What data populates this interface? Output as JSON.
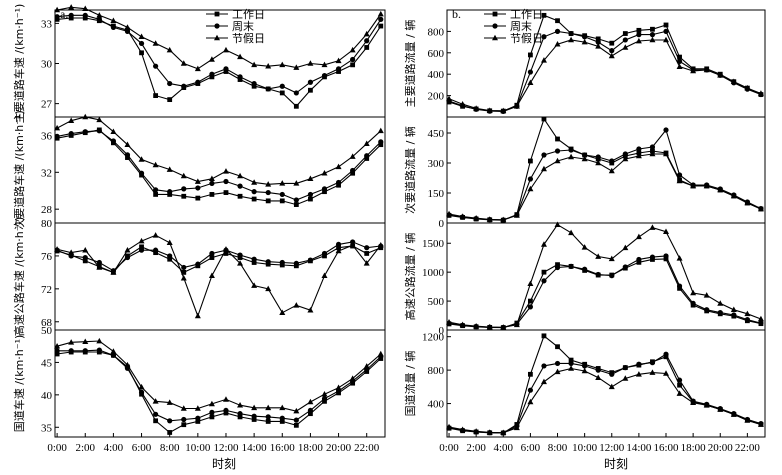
{
  "figure": {
    "panel_tags": [
      "a.",
      "b."
    ],
    "xlabel": "时刻",
    "legend": [
      "工作日",
      "周末",
      "节假日"
    ],
    "x_ticks": [
      "0:00",
      "2:00",
      "4:00",
      "6:00",
      "8:00",
      "10:00",
      "12:00",
      "14:00",
      "16:00",
      "18:00",
      "20:00",
      "22:00"
    ]
  },
  "chart_data": [
    {
      "type": "line",
      "column": "left",
      "row": 0,
      "ylabel": "主要道路车速 /(km·h⁻¹)",
      "ylim": [
        26,
        34
      ],
      "yticks": [
        27,
        30,
        33
      ],
      "x": [
        0,
        1,
        2,
        3,
        4,
        5,
        6,
        7,
        8,
        9,
        10,
        11,
        12,
        13,
        14,
        15,
        16,
        17,
        18,
        19,
        20,
        21,
        22,
        23
      ],
      "series": [
        {
          "name": "工作日",
          "values": [
            33.3,
            33.4,
            33.4,
            33.2,
            32.8,
            32.5,
            30.8,
            27.6,
            27.3,
            28.2,
            28.5,
            29.0,
            29.4,
            28.8,
            28.3,
            28.1,
            27.8,
            26.8,
            28.0,
            29.0,
            29.4,
            29.9,
            31.2,
            32.8
          ]
        },
        {
          "name": "周末",
          "values": [
            33.5,
            33.6,
            33.6,
            33.3,
            32.7,
            32.4,
            31.5,
            29.8,
            28.5,
            28.3,
            28.6,
            29.2,
            29.6,
            29.0,
            28.5,
            28.1,
            28.3,
            27.8,
            28.6,
            29.1,
            29.6,
            30.3,
            31.7,
            33.3
          ]
        },
        {
          "name": "节假日",
          "values": [
            34.0,
            34.2,
            34.1,
            33.6,
            33.2,
            32.7,
            32.0,
            31.5,
            31.0,
            30.0,
            29.6,
            30.3,
            31.0,
            30.5,
            29.9,
            29.8,
            29.9,
            29.7,
            30.0,
            29.9,
            30.2,
            31.0,
            32.2,
            33.7
          ]
        }
      ]
    },
    {
      "type": "line",
      "column": "left",
      "row": 1,
      "ylabel": "次要道路车速 /(km·h⁻¹)",
      "ylim": [
        26.5,
        38
      ],
      "yticks": [
        28,
        32,
        36
      ],
      "x": [
        0,
        1,
        2,
        3,
        4,
        5,
        6,
        7,
        8,
        9,
        10,
        11,
        12,
        13,
        14,
        15,
        16,
        17,
        18,
        19,
        20,
        21,
        22,
        23
      ],
      "series": [
        {
          "name": "工作日",
          "values": [
            35.7,
            36.0,
            36.3,
            36.6,
            35.2,
            33.6,
            31.7,
            29.6,
            29.6,
            29.4,
            29.2,
            29.6,
            29.8,
            29.4,
            29.1,
            28.9,
            28.9,
            28.5,
            29.1,
            29.9,
            30.6,
            31.9,
            33.5,
            35.0
          ]
        },
        {
          "name": "周末",
          "values": [
            35.9,
            36.2,
            36.4,
            36.5,
            35.4,
            33.9,
            31.9,
            30.1,
            29.9,
            30.2,
            30.3,
            30.8,
            31.0,
            30.5,
            29.9,
            29.8,
            29.6,
            29.0,
            29.6,
            30.2,
            30.9,
            32.2,
            33.8,
            35.3
          ]
        },
        {
          "name": "节假日",
          "values": [
            36.8,
            37.6,
            38.0,
            37.7,
            36.4,
            35.0,
            33.4,
            32.8,
            32.3,
            31.6,
            31.0,
            31.3,
            32.1,
            31.6,
            30.9,
            30.7,
            30.8,
            30.8,
            31.3,
            31.9,
            32.6,
            33.7,
            35.1,
            36.5
          ]
        }
      ]
    },
    {
      "type": "line",
      "column": "left",
      "row": 2,
      "ylabel": "高速公路车速 /(km·h⁻¹)",
      "ylim": [
        67,
        80
      ],
      "yticks": [
        68,
        72,
        76,
        80
      ],
      "x": [
        0,
        1,
        2,
        3,
        4,
        5,
        6,
        7,
        8,
        9,
        10,
        11,
        12,
        13,
        14,
        15,
        16,
        17,
        18,
        19,
        20,
        21,
        22,
        23
      ],
      "series": [
        {
          "name": "工作日",
          "values": [
            76.6,
            76.1,
            75.4,
            74.7,
            74.0,
            76.0,
            77.1,
            76.4,
            75.6,
            74.0,
            74.8,
            75.8,
            76.3,
            75.8,
            75.2,
            75.0,
            74.9,
            74.8,
            75.4,
            76.0,
            77.0,
            77.2,
            76.3,
            77.0
          ]
        },
        {
          "name": "周末",
          "values": [
            76.7,
            76.0,
            75.8,
            75.2,
            74.2,
            75.8,
            76.7,
            76.7,
            76.0,
            74.6,
            75.0,
            76.3,
            76.7,
            76.1,
            75.6,
            75.3,
            75.2,
            75.1,
            75.5,
            76.3,
            77.4,
            77.7,
            77.0,
            77.2
          ]
        },
        {
          "name": "节假日",
          "values": [
            76.8,
            76.4,
            76.7,
            74.6,
            74.0,
            76.7,
            77.8,
            78.5,
            77.6,
            73.3,
            68.7,
            73.6,
            76.8,
            75.1,
            72.4,
            72.0,
            69.1,
            70.0,
            69.4,
            73.6,
            76.6,
            77.3,
            75.1,
            77.3
          ]
        }
      ]
    },
    {
      "type": "line",
      "column": "left",
      "row": 3,
      "ylabel": "国道车速 /(km·h⁻¹)",
      "ylim": [
        33.5,
        50
      ],
      "yticks": [
        35,
        40,
        45,
        50
      ],
      "x": [
        0,
        1,
        2,
        3,
        4,
        5,
        6,
        7,
        8,
        9,
        10,
        11,
        12,
        13,
        14,
        15,
        16,
        17,
        18,
        19,
        20,
        21,
        22,
        23
      ],
      "series": [
        {
          "name": "工作日",
          "values": [
            46.3,
            46.6,
            46.6,
            46.6,
            46.1,
            44.3,
            40.1,
            36.0,
            34.2,
            35.4,
            35.9,
            36.6,
            37.2,
            36.6,
            36.2,
            35.9,
            35.9,
            35.3,
            37.1,
            39.0,
            40.3,
            41.8,
            43.6,
            45.6
          ]
        },
        {
          "name": "周末",
          "values": [
            46.8,
            46.8,
            46.8,
            46.9,
            46.1,
            44.1,
            40.4,
            37.0,
            36.0,
            36.2,
            36.4,
            37.3,
            37.6,
            37.1,
            36.7,
            36.6,
            36.4,
            36.1,
            37.6,
            39.4,
            40.6,
            42.1,
            43.9,
            45.9
          ]
        },
        {
          "name": "节假日",
          "values": [
            47.5,
            48.1,
            48.2,
            48.3,
            46.7,
            44.6,
            41.2,
            39.0,
            38.8,
            37.9,
            37.9,
            38.6,
            39.3,
            38.4,
            38.0,
            38.0,
            38.0,
            37.5,
            38.9,
            40.1,
            41.1,
            42.5,
            44.4,
            46.3
          ]
        }
      ]
    },
    {
      "type": "line",
      "column": "right",
      "row": 0,
      "ylabel": "主要道路流量 / 辆",
      "ylim": [
        0,
        1000
      ],
      "yticks": [
        200,
        400,
        600,
        800
      ],
      "x": [
        0,
        1,
        2,
        3,
        4,
        5,
        6,
        7,
        8,
        9,
        10,
        11,
        12,
        13,
        14,
        15,
        16,
        17,
        18,
        19,
        20,
        21,
        22,
        23
      ],
      "series": [
        {
          "name": "工作日",
          "values": [
            140,
            100,
            75,
            58,
            55,
            110,
            580,
            950,
            900,
            780,
            760,
            730,
            690,
            780,
            810,
            820,
            860,
            560,
            450,
            450,
            400,
            330,
            270,
            210
          ]
        },
        {
          "name": "周末",
          "values": [
            150,
            105,
            72,
            55,
            52,
            100,
            420,
            750,
            800,
            780,
            750,
            700,
            620,
            720,
            770,
            770,
            800,
            520,
            440,
            440,
            390,
            320,
            260,
            210
          ]
        },
        {
          "name": "节假日",
          "values": [
            170,
            120,
            80,
            60,
            58,
            100,
            320,
            530,
            680,
            720,
            700,
            660,
            570,
            650,
            710,
            720,
            720,
            470,
            430,
            440,
            390,
            330,
            270,
            220
          ]
        }
      ]
    },
    {
      "type": "line",
      "column": "right",
      "row": 1,
      "ylabel": "次要道路流量 / 辆",
      "ylim": [
        0,
        530
      ],
      "yticks": [
        0,
        150,
        300,
        450
      ],
      "x": [
        0,
        1,
        2,
        3,
        4,
        5,
        6,
        7,
        8,
        9,
        10,
        11,
        12,
        13,
        14,
        15,
        16,
        17,
        18,
        19,
        20,
        21,
        22,
        23
      ],
      "series": [
        {
          "name": "工作日",
          "values": [
            38,
            28,
            20,
            16,
            14,
            42,
            310,
            520,
            420,
            370,
            340,
            320,
            300,
            335,
            350,
            360,
            350,
            215,
            185,
            185,
            165,
            135,
            100,
            70
          ]
        },
        {
          "name": "周末",
          "values": [
            40,
            30,
            22,
            17,
            15,
            40,
            220,
            340,
            360,
            365,
            340,
            330,
            310,
            345,
            370,
            380,
            465,
            240,
            190,
            190,
            170,
            140,
            105,
            72
          ]
        },
        {
          "name": "节假日",
          "values": [
            45,
            32,
            24,
            18,
            16,
            38,
            170,
            270,
            310,
            330,
            320,
            300,
            260,
            320,
            335,
            345,
            345,
            210,
            185,
            185,
            165,
            135,
            100,
            70
          ]
        }
      ]
    },
    {
      "type": "line",
      "column": "right",
      "row": 2,
      "ylabel": "高速公路流量 / 辆",
      "ylim": [
        0,
        1850
      ],
      "yticks": [
        0,
        500,
        1000,
        1500
      ],
      "x": [
        0,
        1,
        2,
        3,
        4,
        5,
        6,
        7,
        8,
        9,
        10,
        11,
        12,
        13,
        14,
        15,
        16,
        17,
        18,
        19,
        20,
        21,
        22,
        23
      ],
      "series": [
        {
          "name": "工作日",
          "values": [
            105,
            75,
            55,
            45,
            42,
            120,
            500,
            1000,
            1130,
            1100,
            1030,
            950,
            950,
            1070,
            1170,
            1220,
            1230,
            720,
            430,
            330,
            280,
            240,
            160,
            110
          ]
        },
        {
          "name": "周末",
          "values": [
            115,
            80,
            60,
            47,
            44,
            100,
            400,
            850,
            1080,
            1100,
            1050,
            960,
            940,
            1090,
            1220,
            1260,
            1280,
            760,
            460,
            350,
            300,
            260,
            180,
            120
          ]
        },
        {
          "name": "节假日",
          "values": [
            135,
            90,
            65,
            50,
            46,
            90,
            800,
            1480,
            1820,
            1680,
            1430,
            1270,
            1230,
            1420,
            1610,
            1770,
            1700,
            1240,
            640,
            600,
            460,
            350,
            280,
            190
          ]
        }
      ]
    },
    {
      "type": "line",
      "column": "right",
      "row": 3,
      "ylabel": "国道流量 / 辆",
      "ylim": [
        0,
        1280
      ],
      "yticks": [
        400,
        800,
        1200
      ],
      "x": [
        0,
        1,
        2,
        3,
        4,
        5,
        6,
        7,
        8,
        9,
        10,
        11,
        12,
        13,
        14,
        15,
        16,
        17,
        18,
        19,
        20,
        21,
        22,
        23
      ],
      "series": [
        {
          "name": "工作日",
          "values": [
            105,
            75,
            60,
            50,
            48,
            150,
            750,
            1210,
            1080,
            920,
            870,
            820,
            770,
            830,
            860,
            900,
            960,
            620,
            420,
            380,
            330,
            270,
            200,
            150
          ]
        },
        {
          "name": "周末",
          "values": [
            110,
            80,
            62,
            52,
            50,
            130,
            560,
            850,
            880,
            880,
            850,
            800,
            750,
            830,
            870,
            890,
            990,
            680,
            430,
            390,
            340,
            280,
            210,
            160
          ]
        },
        {
          "name": "节假日",
          "values": [
            120,
            88,
            68,
            55,
            52,
            110,
            420,
            660,
            780,
            820,
            790,
            710,
            600,
            700,
            750,
            770,
            760,
            520,
            410,
            380,
            330,
            270,
            200,
            150
          ]
        }
      ]
    }
  ]
}
